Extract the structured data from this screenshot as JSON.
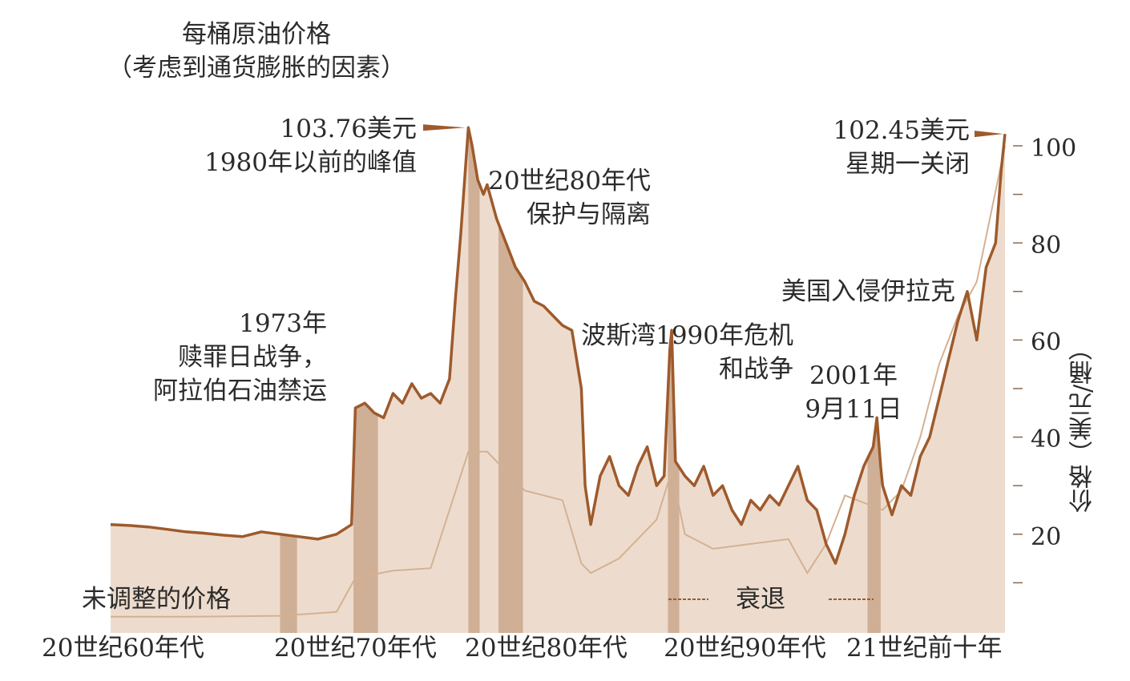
{
  "colors": {
    "fill": "#eddccd",
    "line": "#9e5a2c",
    "recession": "#b68a6a",
    "unadjusted": "#d4b193",
    "grid": "#f6ede4",
    "text": "#2b2b2b"
  },
  "chart_data": {
    "type": "area",
    "title": "每桶原油价格",
    "subtitle": "（考虑到通货膨胀的因素）",
    "ylabel": "价格（美元/桶）",
    "xlabel": "",
    "x_range": [
      1961.0,
      2008.5
    ],
    "ylim": [
      0,
      110
    ],
    "y_ticks": [
      20,
      40,
      60,
      80,
      100
    ],
    "decades": [
      "20世纪60年代",
      "20世纪70年代",
      "20世纪80年代",
      "20世纪90年代",
      "21世纪前十年"
    ],
    "series": [
      {
        "name": "",
        "x": [
          1961.0,
          1962.0,
          1963.0,
          1964.0,
          1965.0,
          1966.0,
          1967.0,
          1968.0,
          1969.0,
          1970.0,
          1971.0,
          1972.0,
          1973.0,
          1973.8,
          1974.0,
          1974.5,
          1975.0,
          1975.5,
          1976.0,
          1976.5,
          1977.0,
          1977.5,
          1978.0,
          1978.5,
          1979.0,
          1979.3,
          1979.6,
          1980.0,
          1980.2,
          1980.5,
          1980.8,
          1981.0,
          1981.5,
          1982.0,
          1982.5,
          1983.0,
          1983.5,
          1984.0,
          1984.5,
          1985.0,
          1985.5,
          1986.0,
          1986.2,
          1986.5,
          1987.0,
          1987.5,
          1988.0,
          1988.5,
          1989.0,
          1989.5,
          1990.0,
          1990.4,
          1990.7,
          1990.8,
          1991.0,
          1991.5,
          1992.0,
          1992.5,
          1993.0,
          1993.5,
          1994.0,
          1994.5,
          1995.0,
          1995.5,
          1996.0,
          1996.5,
          1997.0,
          1997.5,
          1998.0,
          1998.5,
          1999.0,
          1999.5,
          2000.0,
          2000.5,
          2001.0,
          2001.5,
          2001.7,
          2001.9,
          2002.0,
          2002.5,
          2003.0,
          2003.5,
          2004.0,
          2004.5,
          2005.0,
          2005.5,
          2006.0,
          2006.5,
          2007.0,
          2007.5,
          2008.0,
          2008.3,
          2008.5
        ],
        "y": [
          22,
          21.8,
          21.5,
          21,
          20.5,
          20.2,
          19.8,
          19.5,
          20.5,
          20,
          19.5,
          19,
          20,
          22,
          46,
          47,
          45,
          44,
          49,
          47,
          51,
          48,
          49,
          47,
          52,
          68,
          82,
          103.76,
          100,
          93,
          90,
          92,
          85,
          80,
          75,
          72,
          68,
          67,
          65,
          63,
          62,
          50,
          30,
          22,
          32,
          36,
          30,
          28,
          34,
          38,
          30,
          32,
          58,
          62,
          35,
          32,
          30,
          34,
          28,
          30,
          25,
          22,
          27,
          25,
          28,
          26,
          30,
          34,
          27,
          25,
          18,
          14,
          20,
          28,
          34,
          38,
          44,
          34,
          30,
          24,
          30,
          28,
          36,
          40,
          48,
          56,
          64,
          70,
          60,
          75,
          80,
          95,
          102.45
        ]
      },
      {
        "name": "未调整的价格",
        "x": [
          1961.0,
          1965.0,
          1970.0,
          1973.0,
          1974.0,
          1976.0,
          1978.0,
          1979.0,
          1980.0,
          1981.0,
          1982.0,
          1983.0,
          1984.0,
          1985.0,
          1986.0,
          1986.5,
          1988.0,
          1990.0,
          1990.8,
          1991.5,
          1993.0,
          1995.0,
          1997.0,
          1998.0,
          1999.0,
          2000.0,
          2002.0,
          2003.0,
          2004.0,
          2005.0,
          2006.0,
          2007.0,
          2008.5
        ],
        "y": [
          3,
          3,
          3.2,
          4,
          11,
          12.5,
          13,
          25,
          37,
          37,
          33,
          29,
          28,
          27,
          14,
          12,
          15,
          23,
          33,
          20,
          17,
          18,
          19,
          12,
          18,
          28,
          25,
          29,
          40,
          55,
          65,
          72,
          100
        ]
      }
    ],
    "recessions": [
      [
        1970.0,
        1970.9
      ],
      [
        1973.9,
        1975.2
      ],
      [
        1980.0,
        1980.6
      ],
      [
        1981.6,
        1982.9
      ],
      [
        1990.6,
        1991.2
      ],
      [
        2001.2,
        2001.9
      ]
    ],
    "annotations": [
      {
        "text": [
          "103.76美元",
          "1980年以前的峰值"
        ],
        "x": 1980.0,
        "y": 103.76
      },
      {
        "text": [
          "102.45美元",
          "星期一关闭"
        ],
        "x": 2008.5,
        "y": 102.45
      },
      {
        "text": [
          "20世纪80年代",
          "保护与隔离"
        ],
        "x": 1984.0,
        "y": 90
      },
      {
        "text": [
          "1973年",
          "赎罪日战争，",
          "阿拉伯石油禁运"
        ],
        "x": 1973.8,
        "y": 46
      },
      {
        "text": [
          "波斯湾1990年危机",
          "和战争"
        ],
        "x": 1990.7,
        "y": 62
      },
      {
        "text": [
          "美国入侵伊拉克"
        ],
        "x": 2003.0,
        "y": 62
      },
      {
        "text": [
          "2001年",
          "9月11日"
        ],
        "x": 2001.7,
        "y": 44
      },
      {
        "text": [
          "未调整的价格"
        ],
        "x": 1965.0,
        "y": 3
      },
      {
        "text": [
          "衰退"
        ],
        "x": 1995.0,
        "y": 5
      }
    ]
  }
}
